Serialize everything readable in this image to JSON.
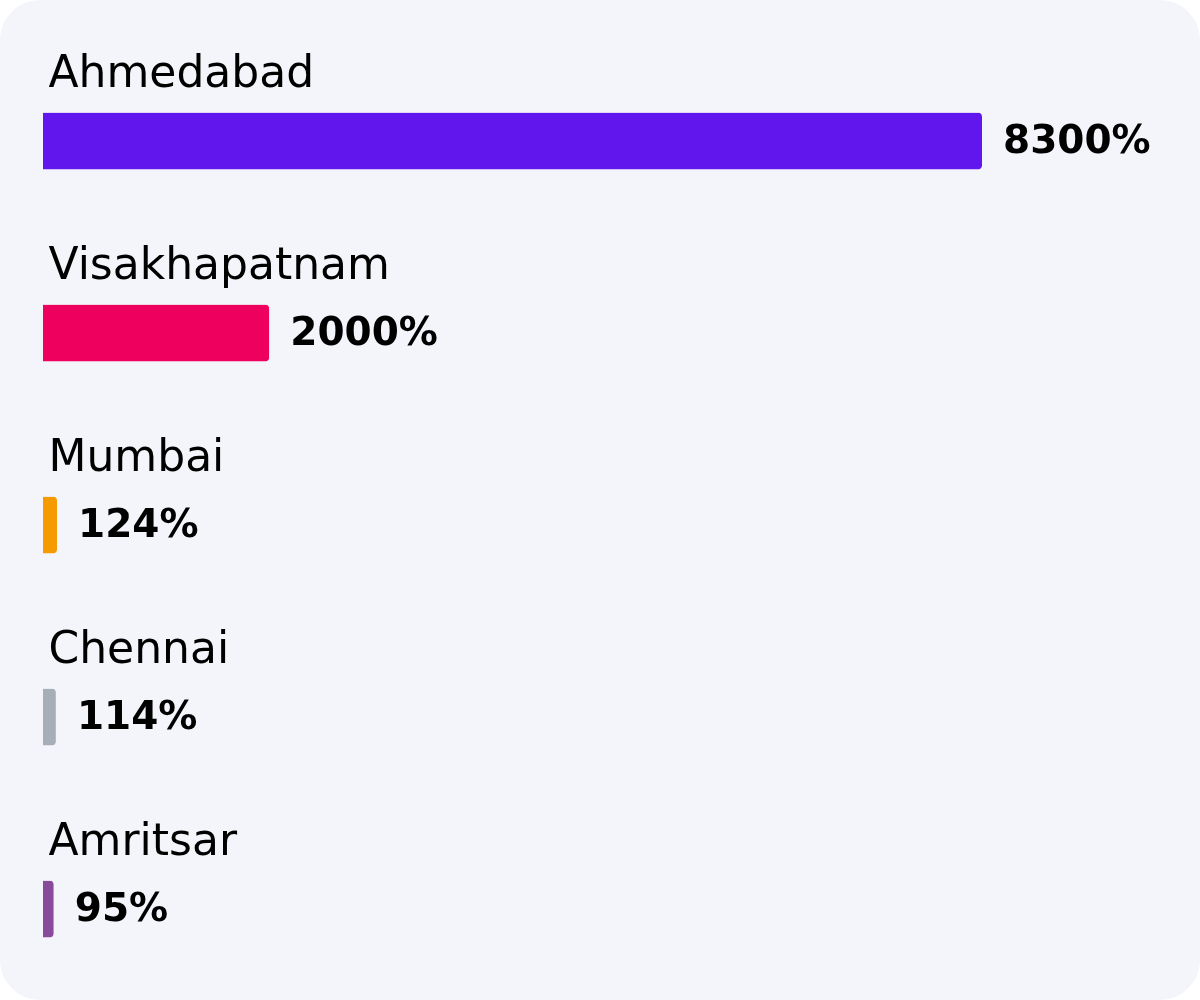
{
  "chart_data": {
    "type": "bar",
    "orientation": "horizontal",
    "categories": [
      "Ahmedabad",
      "Visakhapatnam",
      "Mumbai",
      "Chennai",
      "Amritsar"
    ],
    "values": [
      8300,
      2000,
      124,
      114,
      95
    ],
    "colors": [
      "#6016ec",
      "#ee005f",
      "#f59b00",
      "#a6aeb8",
      "#8a4a9c"
    ],
    "value_labels": [
      "8300%",
      "2000%",
      "124%",
      "114%",
      "95%"
    ],
    "tick_labels": "y"
  }
}
